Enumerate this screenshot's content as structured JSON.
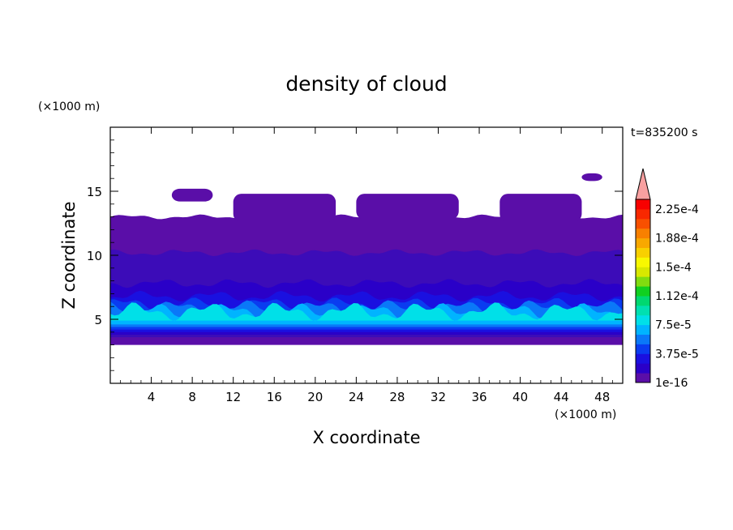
{
  "chart_data": {
    "type": "heatmap",
    "title": "density of cloud",
    "time_label": "t=835200 s",
    "xlabel": "X coordinate",
    "ylabel": "Z coordinate",
    "x_unit": "(×1000 m)",
    "y_unit": "(×1000 m)",
    "xlim": [
      0,
      50
    ],
    "ylim": [
      0,
      20
    ],
    "x_ticks": [
      4,
      8,
      12,
      16,
      20,
      24,
      28,
      32,
      36,
      40,
      44,
      48
    ],
    "y_ticks": [
      5,
      10,
      15
    ],
    "colorbar": {
      "labels": [
        "1e-16",
        "3.75e-5",
        "7.5e-5",
        "1.12e-4",
        "1.5e-4",
        "1.88e-4",
        "2.25e-4"
      ],
      "label_levels": [
        0,
        3,
        6,
        9,
        12,
        15,
        18
      ],
      "colors": [
        "#5a0ea8",
        "#2a00c8",
        "#1a10e0",
        "#0a3cf0",
        "#0a78f8",
        "#00b4ff",
        "#00e0e8",
        "#00e0b0",
        "#00d870",
        "#10d020",
        "#80dc10",
        "#d8e800",
        "#f8f800",
        "#f8d000",
        "#f8a800",
        "#f88000",
        "#f85000",
        "#f82800",
        "#f80000",
        "#f8a0a0"
      ]
    },
    "bands": [
      {
        "level": 0,
        "color": "#5a0ea8",
        "z_bottom": 3.0,
        "z_top": 13.0
      },
      {
        "level": 1,
        "color": "#3c0cb8",
        "z_bottom": 3.6,
        "z_top": 10.2
      },
      {
        "level": 2,
        "color": "#2a00c8",
        "z_bottom": 3.8,
        "z_top": 7.8
      },
      {
        "level": 3,
        "color": "#1a10e0",
        "z_bottom": 4.0,
        "z_top": 6.8
      },
      {
        "level": 4,
        "color": "#0a3cf0",
        "z_bottom": 4.2,
        "z_top": 6.2
      },
      {
        "level": 5,
        "color": "#0a78f8",
        "z_bottom": 4.4,
        "z_top": 5.9
      },
      {
        "level": 6,
        "color": "#00b4ff",
        "z_bottom": 4.6,
        "z_top": 5.6
      },
      {
        "level": 7,
        "color": "#00e0e8",
        "z_bottom": 4.9,
        "z_top": 5.6
      }
    ]
  }
}
